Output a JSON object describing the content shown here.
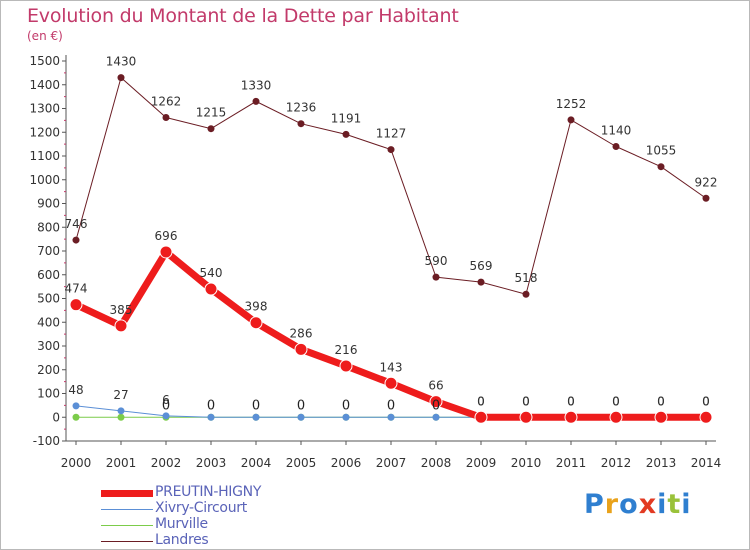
{
  "title": "Evolution du Montant de la Dette par Habitant",
  "unit": "(en €)",
  "brand": {
    "letters": [
      "P",
      "r",
      "o",
      "x",
      "i",
      "t",
      "i"
    ],
    "colors": [
      "#2f7fd0",
      "#e9a21b",
      "#2f7fd0",
      "#e23a22",
      "#2f7fd0",
      "#9ac23a",
      "#2f7fd0"
    ]
  },
  "chart_data": {
    "type": "line",
    "x": [
      "2000",
      "2001",
      "2002",
      "2003",
      "2004",
      "2005",
      "2006",
      "2007",
      "2008",
      "2009",
      "2010",
      "2011",
      "2012",
      "2013",
      "2014"
    ],
    "ylim": [
      -100,
      1500
    ],
    "yticks": [
      -100,
      0,
      100,
      200,
      300,
      400,
      500,
      600,
      700,
      800,
      900,
      1000,
      1100,
      1200,
      1300,
      1400,
      1500
    ],
    "grid": false,
    "legend_position": "bottom-left",
    "series": [
      {
        "name": "Landres",
        "color": "#6b1d24",
        "width": 1,
        "values": [
          746,
          1430,
          1262,
          1215,
          1330,
          1236,
          1191,
          1127,
          590,
          569,
          518,
          1252,
          1140,
          1055,
          922
        ],
        "labels": [
          "746",
          "1430",
          "1262",
          "1215",
          "1330",
          "1236",
          "1191",
          "1127",
          "590",
          "569",
          "518",
          "1252",
          "1140",
          "1055",
          "922"
        ]
      },
      {
        "name": "Murville",
        "color": "#7ccc4a",
        "width": 1,
        "values": [
          0,
          0,
          0,
          0,
          0,
          0,
          0,
          0,
          0,
          0,
          0,
          0,
          0,
          0,
          0
        ],
        "labels": [
          "",
          "",
          "",
          "",
          "",
          "",
          "",
          "",
          "",
          "",
          "",
          "",
          "",
          "",
          ""
        ]
      },
      {
        "name": "Xivry-Circourt",
        "color": "#5b8fd6",
        "width": 1,
        "values": [
          48,
          27,
          6,
          0,
          0,
          0,
          0,
          0,
          0,
          0,
          0,
          0,
          0,
          0,
          0
        ],
        "labels": [
          "48",
          "27",
          "6",
          "",
          "",
          "",
          "",
          "",
          "",
          "0",
          "0",
          "0",
          "0",
          "0",
          "0"
        ]
      },
      {
        "name": "PREUTIN-HIGNY",
        "color": "#ee1c1c",
        "width": 7,
        "values": [
          474,
          385,
          696,
          540,
          398,
          286,
          216,
          143,
          66,
          0,
          0,
          0,
          0,
          0,
          0
        ],
        "labels": [
          "474",
          "385",
          "696",
          "540",
          "398",
          "286",
          "216",
          "143",
          "66",
          "0",
          "0",
          "0",
          "0",
          "0",
          "0"
        ]
      }
    ],
    "zero_labels": [
      "",
      "",
      "0",
      "0",
      "0",
      "0",
      "0",
      "0",
      "0",
      "",
      "",
      "",
      "",
      "",
      ""
    ]
  },
  "legend": [
    {
      "name": "PREUTIN-HIGNY",
      "color": "#ee1c1c",
      "width": 7
    },
    {
      "name": "Xivry-Circourt",
      "color": "#5b8fd6",
      "width": 1
    },
    {
      "name": "Murville",
      "color": "#7ccc4a",
      "width": 1
    },
    {
      "name": "Landres",
      "color": "#6b1d24",
      "width": 1
    }
  ]
}
